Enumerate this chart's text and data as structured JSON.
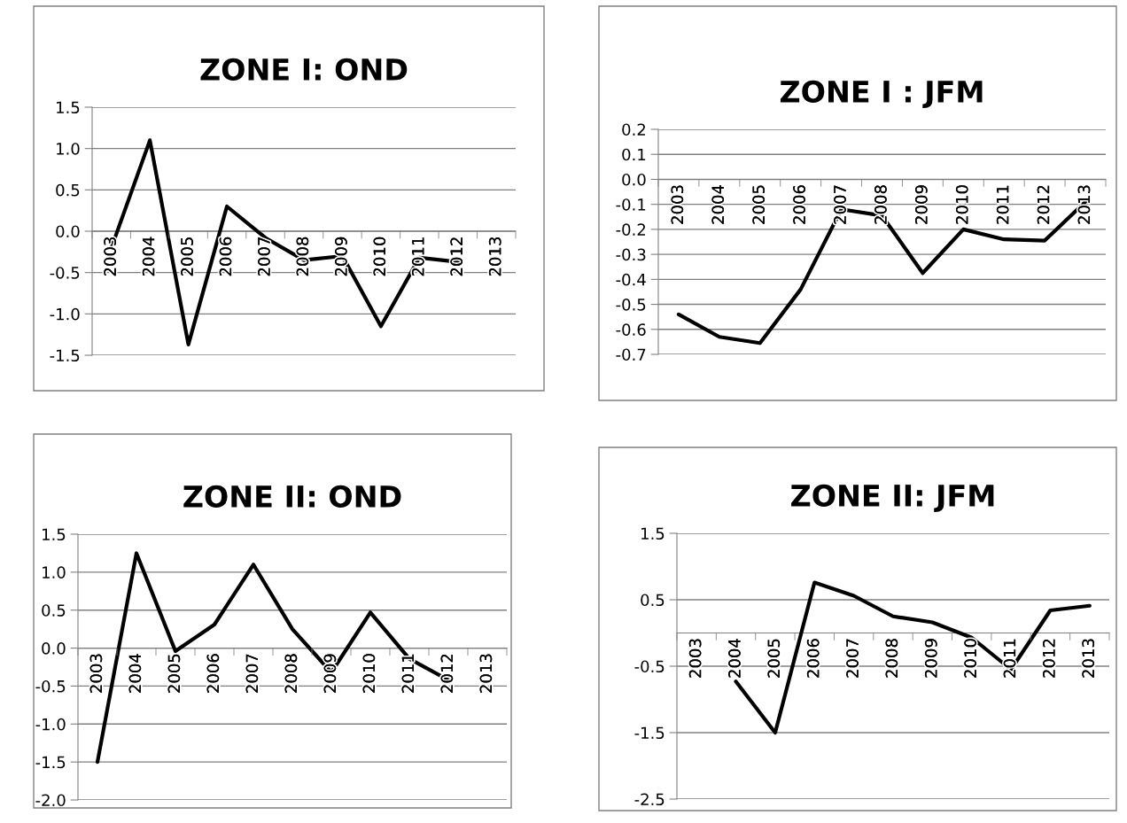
{
  "chart_data": [
    {
      "type": "line",
      "title": "ZONE I: OND",
      "categories": [
        "2003",
        "2004",
        "2005",
        "2006",
        "2007",
        "2008",
        "2009",
        "2010",
        "2011",
        "2012",
        "2013"
      ],
      "color": "#000000",
      "values": [
        -0.2,
        1.1,
        -1.37,
        0.3,
        -0.08,
        -0.35,
        -0.3,
        -1.15,
        -0.32,
        -0.37,
        null
      ],
      "ylim": [
        -1.5,
        1.5
      ],
      "yticks": [
        {
          "value": -1.5,
          "label": "-1.5"
        },
        {
          "value": -1.0,
          "label": "-1.0"
        },
        {
          "value": -0.5,
          "label": "-0.5"
        },
        {
          "value": 0,
          "label": "0.0"
        },
        {
          "value": 0.5,
          "label": "0.5"
        },
        {
          "value": 1.0,
          "label": "1.0"
        },
        {
          "value": 1.5,
          "label": "1.5"
        }
      ],
      "grid": "y",
      "marker": "none",
      "line_style": "solid",
      "legend": false
    },
    {
      "type": "line",
      "title": "ZONE I : JFM",
      "categories": [
        "2003",
        "2004",
        "2005",
        "2006",
        "2007",
        "2008",
        "2009",
        "2010",
        "2011",
        "2012",
        "2013"
      ],
      "color": "#000000",
      "values": [
        -0.54,
        -0.63,
        -0.655,
        -0.44,
        -0.12,
        -0.145,
        -0.375,
        -0.2,
        -0.24,
        -0.245,
        -0.09
      ],
      "ylim": [
        -0.7,
        0.2
      ],
      "yticks": [
        {
          "value": -0.7,
          "label": "-0.7"
        },
        {
          "value": -0.6,
          "label": "-0.6"
        },
        {
          "value": -0.5,
          "label": "-0.5"
        },
        {
          "value": -0.4,
          "label": "-0.4"
        },
        {
          "value": -0.3,
          "label": "-0.3"
        },
        {
          "value": -0.2,
          "label": "-0.2"
        },
        {
          "value": -0.1,
          "label": "-0.1"
        },
        {
          "value": 0,
          "label": "0.0"
        },
        {
          "value": 0.1,
          "label": "0.1"
        },
        {
          "value": 0.2,
          "label": "0.2"
        }
      ],
      "grid": "y",
      "marker": "none",
      "line_style": "solid",
      "legend": false
    },
    {
      "type": "line",
      "title": "ZONE II: OND",
      "categories": [
        "2003",
        "2004",
        "2005",
        "2006",
        "2007",
        "2008",
        "2009",
        "2010",
        "2011",
        "2012",
        "2013"
      ],
      "color": "#000000",
      "values": [
        -1.5,
        1.25,
        -0.04,
        0.31,
        1.1,
        0.25,
        -0.32,
        0.47,
        -0.14,
        -0.42,
        null
      ],
      "ylim": [
        -2.0,
        1.5
      ],
      "yticks": [
        {
          "value": -2.0,
          "label": "-2.0"
        },
        {
          "value": -1.5,
          "label": "-1.5"
        },
        {
          "value": -1.0,
          "label": "-1.0"
        },
        {
          "value": -0.5,
          "label": "-0.5"
        },
        {
          "value": 0,
          "label": "0.0"
        },
        {
          "value": 0.5,
          "label": "0.5"
        },
        {
          "value": 1.0,
          "label": "1.0"
        },
        {
          "value": 1.5,
          "label": "1.5"
        }
      ],
      "grid": "y",
      "marker": "none",
      "line_style": "solid",
      "legend": false
    },
    {
      "type": "line",
      "title": "ZONE II: JFM",
      "categories": [
        "2003",
        "2004",
        "2005",
        "2006",
        "2007",
        "2008",
        "2009",
        "2010",
        "2011",
        "2012",
        "2013"
      ],
      "color": "#000000",
      "values": [
        null,
        -0.73,
        -1.5,
        0.76,
        0.56,
        0.25,
        0.16,
        -0.07,
        -0.55,
        0.34,
        0.41
      ],
      "ylim": [
        -2.5,
        1.5
      ],
      "yticks": [
        -2.5,
        -1.5,
        -0.5,
        0.5,
        1.5
      ],
      "grid": "y",
      "marker": "none",
      "line_style": "solid",
      "legend": false
    }
  ]
}
